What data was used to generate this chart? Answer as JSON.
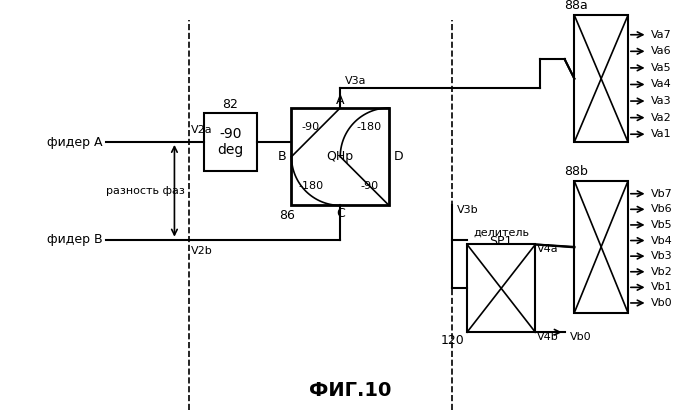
{
  "bg_color": "#ffffff",
  "line_color": "#000000",
  "fig_label": "ФИГ.10",
  "title_label": "",
  "texts": {
    "fider_a": "фидер А",
    "fider_b": "фидер В",
    "phase_diff": "разность фаз",
    "box82_label": "82",
    "box82_line1": "-90",
    "box82_line2": "deg",
    "box86_label": "86",
    "qhp_label": "QHp",
    "minus90_tl": "-90",
    "minus180_tr": "-180",
    "minus180_bl": "-180",
    "minus90_br": "-90",
    "port_a": "A",
    "port_b": "B",
    "port_c": "C",
    "port_d": "D",
    "v2a": "V2a",
    "v2b": "V2b",
    "v3a": "V3a",
    "v3b": "V3b",
    "v4a": "V4a",
    "v4b": "V4b",
    "label88a": "88a",
    "label88b": "88b",
    "label120": "120",
    "splitter_label": "делитель",
    "sp1_label": "SP1",
    "va_labels": [
      "Va7",
      "Va6",
      "Va5",
      "Va4",
      "Va3",
      "Va2",
      "Va1"
    ],
    "vb_labels": [
      "Vb7",
      "Vb6",
      "Vb5",
      "Vb4",
      "Vb3",
      "Vb2",
      "Vb1",
      "Vb0"
    ]
  }
}
